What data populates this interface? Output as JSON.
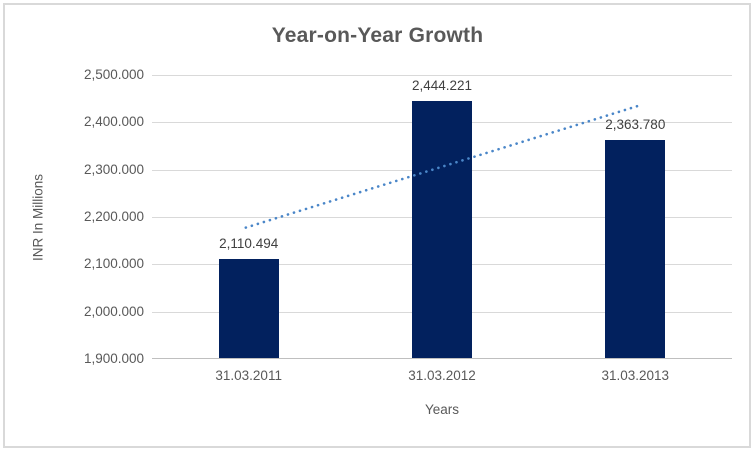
{
  "chart_data": {
    "type": "bar",
    "title": "Year-on-Year Growth",
    "xlabel": "Years",
    "ylabel": "INR In Millions",
    "categories": [
      "31.03.2011",
      "31.03.2012",
      "31.03.2013"
    ],
    "values": [
      2110.494,
      2444.221,
      2363.78
    ],
    "value_labels": [
      "2,110.494",
      "2,444.221",
      "2,363.780"
    ],
    "ylim": [
      1900,
      2500
    ],
    "ytick_step": 100,
    "ytick_labels": [
      "1,900.000",
      "2,000.000",
      "2,100.000",
      "2,200.000",
      "2,300.000",
      "2,400.000",
      "2,500.000"
    ],
    "grid": true,
    "legend": false,
    "trendline": {
      "type": "linear",
      "style": "dotted"
    },
    "colors": {
      "bar": "#02215E",
      "trendline": "#4A86C8",
      "gridline": "#D9D9D9",
      "axis_line": "#BFBFBF",
      "title_text": "#595959",
      "axis_text": "#595959",
      "data_label_text": "#404040",
      "border": "#D9D9D9"
    }
  }
}
